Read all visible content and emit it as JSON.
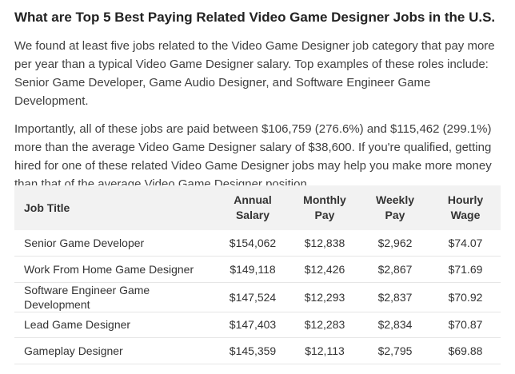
{
  "article": {
    "heading": "What are Top 5 Best Paying Related Video Game Designer Jobs in the U.S.",
    "paragraph_1": "We found at least five jobs related to the Video Game Designer job category that pay more per year than a typical Video Game Designer salary. Top examples of these roles include: Senior Game Developer, Game Audio Designer, and Software Engineer Game Development.",
    "paragraph_2": "Importantly, all of these jobs are paid between $106,759 (276.6%) and $115,462 (299.1%) more than the average Video Game Designer salary of $38,600. If you're qualified, getting hired for one of these related Video Game Designer jobs may help you make more money than that of the average Video Game Designer position."
  },
  "table": {
    "headers": {
      "job_title": "Job Title",
      "annual_line1": "Annual",
      "annual_line2": "Salary",
      "monthly_line1": "Monthly",
      "monthly_line2": "Pay",
      "weekly_line1": "Weekly",
      "weekly_line2": "Pay",
      "hourly_line1": "Hourly",
      "hourly_line2": "Wage"
    },
    "rows": [
      {
        "title": "Senior Game Developer",
        "annual": "$154,062",
        "monthly": "$12,838",
        "weekly": "$2,962",
        "hourly": "$74.07"
      },
      {
        "title": "Work From Home Game Designer",
        "annual": "$149,118",
        "monthly": "$12,426",
        "weekly": "$2,867",
        "hourly": "$71.69"
      },
      {
        "title": "Software Engineer Game Development",
        "annual": "$147,524",
        "monthly": "$12,293",
        "weekly": "$2,837",
        "hourly": "$70.92"
      },
      {
        "title": "Lead Game Designer",
        "annual": "$147,403",
        "monthly": "$12,283",
        "weekly": "$2,834",
        "hourly": "$70.87"
      },
      {
        "title": "Gameplay Designer",
        "annual": "$145,359",
        "monthly": "$12,113",
        "weekly": "$2,795",
        "hourly": "$69.88"
      }
    ]
  }
}
